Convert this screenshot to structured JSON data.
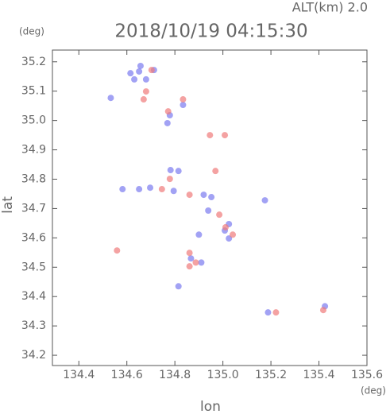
{
  "chart_data": {
    "type": "scatter",
    "title": "2018/10/19 04:15:30",
    "subtitle": "ALT(km) 2.0",
    "y_unit": "(deg)",
    "x_unit": "(deg)",
    "y_label": "lat",
    "x_label": "lon",
    "xlim": [
      134.29,
      135.6
    ],
    "ylim": [
      34.165,
      35.24
    ],
    "xticks": [
      134.4,
      134.6,
      134.8,
      {
        "value": 135.0,
        "label": "135.0"
      },
      135.2,
      135.4,
      135.6
    ],
    "yticks": [
      34.2,
      34.3,
      34.4,
      34.5,
      34.6,
      34.7,
      34.8,
      34.9,
      {
        "value": 35.0,
        "label": "35.0"
      },
      35.1,
      35.2
    ],
    "series": [
      {
        "color": "#7b7bf0",
        "x": [
          134.533,
          134.657,
          134.631,
          134.68,
          134.713,
          134.651,
          134.615,
          134.779,
          134.834,
          134.782,
          134.815,
          134.582,
          134.651,
          134.697,
          134.795,
          134.92,
          134.952,
          134.939,
          135.025,
          135.008,
          134.91,
          134.867,
          135.025,
          135.188,
          135.425,
          134.9,
          134.769,
          135.175,
          134.815
        ],
        "values": [
          35.077,
          35.186,
          35.14,
          35.14,
          35.172,
          35.167,
          35.161,
          35.018,
          35.053,
          34.831,
          34.828,
          34.766,
          34.766,
          34.771,
          34.76,
          34.747,
          34.739,
          34.693,
          34.647,
          34.625,
          34.516,
          34.53,
          34.598,
          34.346,
          34.367,
          34.611,
          34.991,
          34.728,
          34.435
        ]
      },
      {
        "color": "#f07b7b",
        "x": [
          134.68,
          134.67,
          134.703,
          134.772,
          134.834,
          135.008,
          134.946,
          134.969,
          134.779,
          134.861,
          134.985,
          135.041,
          134.861,
          134.887,
          134.861,
          135.221,
          135.418,
          134.559,
          134.746,
          135.011
        ],
        "values": [
          35.099,
          35.072,
          35.172,
          35.031,
          35.072,
          34.95,
          34.95,
          34.828,
          34.801,
          34.747,
          34.679,
          34.611,
          34.549,
          34.516,
          34.503,
          34.346,
          34.354,
          34.557,
          34.766,
          34.636
        ]
      }
    ]
  }
}
